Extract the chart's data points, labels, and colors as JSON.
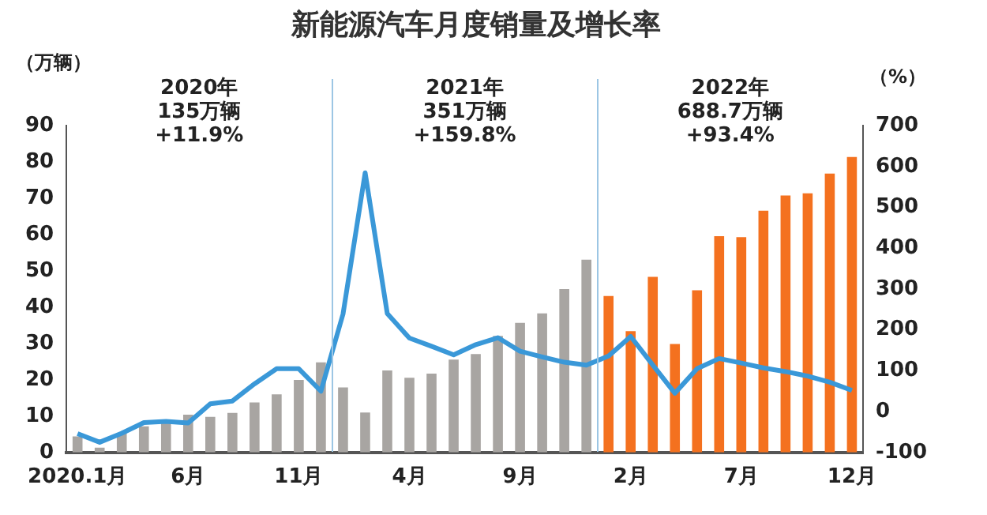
{
  "chart_data": {
    "type": "bar",
    "title": "新能源汽车月度销量及增长率",
    "ylabel": "（万辆）",
    "y2label": "（%）",
    "categories": [
      "2020.1月",
      null,
      null,
      null,
      null,
      "6月",
      null,
      null,
      null,
      null,
      "11月",
      null,
      null,
      null,
      null,
      "4月",
      null,
      null,
      null,
      null,
      "9月",
      null,
      null,
      null,
      null,
      "2月",
      null,
      null,
      null,
      null,
      "7月",
      null,
      null,
      null,
      null,
      "12月"
    ],
    "series": [
      {
        "colors": [
          "#a8a5a2",
          "#a8a5a2",
          "#a8a5a2",
          "#a8a5a2",
          "#a8a5a2",
          "#a8a5a2",
          "#a8a5a2",
          "#a8a5a2",
          "#a8a5a2",
          "#a8a5a2",
          "#a8a5a2",
          "#a8a5a2",
          "#a8a5a2",
          "#a8a5a2",
          "#a8a5a2",
          "#a8a5a2",
          "#a8a5a2",
          "#a8a5a2",
          "#a8a5a2",
          "#a8a5a2",
          "#a8a5a2",
          "#a8a5a2",
          "#a8a5a2",
          "#a8a5a2",
          "#f4711f",
          "#f4711f",
          "#f4711f",
          "#f4711f",
          "#f4711f",
          "#f4711f",
          "#f4711f",
          "#f4711f",
          "#f4711f",
          "#f4711f",
          "#f4711f",
          "#f4711f"
        ],
        "values": [
          4.4,
          1.3,
          5.3,
          7.2,
          8.2,
          10.4,
          9.8,
          10.9,
          13.8,
          16,
          20,
          24.8,
          17.9,
          11,
          22.6,
          20.6,
          21.7,
          25.6,
          27.1,
          32.1,
          35.7,
          38.3,
          45,
          53.1,
          43.1,
          33.4,
          48.4,
          29.9,
          44.7,
          59.6,
          59.3,
          66.6,
          70.8,
          71.4,
          76.8,
          81.4
        ]
      },
      {
        "type": "line",
        "axis": "y2",
        "color": "#3a98d8",
        "values": [
          -54,
          -75,
          -53,
          -27,
          -24,
          -28,
          19,
          26,
          68,
          105,
          105,
          50,
          239,
          585,
          240,
          180,
          160,
          139,
          164,
          181,
          148,
          134,
          121,
          114,
          136,
          184,
          114,
          45,
          105,
          130,
          119,
          107,
          98,
          87,
          72,
          52
        ]
      }
    ],
    "ylim": [
      0,
      90
    ],
    "yticks": [
      0,
      10,
      20,
      30,
      40,
      50,
      60,
      70,
      80,
      90
    ],
    "y2lim": [
      -100,
      700
    ],
    "y2ticks": [
      -100,
      0,
      100,
      200,
      300,
      400,
      500,
      600,
      700
    ],
    "grid": false,
    "legend": false,
    "marker": "none",
    "line_style": "solid",
    "annotations": [
      "2020年\n135万辆\n+11.9%",
      "2021年\n351万辆\n+159.8%",
      "2022年\n688.7万辆\n+93.4%"
    ]
  }
}
